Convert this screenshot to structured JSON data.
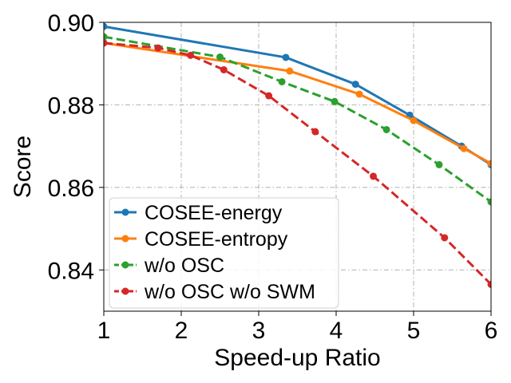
{
  "chart_data": {
    "type": "line",
    "title": "",
    "xlabel": "Speed-up Ratio",
    "ylabel": "Score",
    "xlim": [
      1,
      6
    ],
    "ylim": [
      0.83,
      0.9
    ],
    "xticks": [
      1,
      2,
      3,
      4,
      5,
      6
    ],
    "xtick_labels": [
      "1",
      "2",
      "3",
      "4",
      "5",
      "6"
    ],
    "yticks": [
      0.84,
      0.86,
      0.88,
      0.9
    ],
    "ytick_labels": [
      "0.84",
      "0.86",
      "0.88",
      "0.90"
    ],
    "grid": true,
    "legend_position": "lower-left",
    "series": [
      {
        "name": "COSEE-energy",
        "color": "#1f77b4",
        "linestyle": "solid",
        "x": [
          1.0,
          3.35,
          4.25,
          4.95,
          5.62,
          6.0
        ],
        "y": [
          0.899,
          0.8915,
          0.885,
          0.8775,
          0.87,
          0.8655
        ]
      },
      {
        "name": "COSEE-entropy",
        "color": "#ff7f0e",
        "linestyle": "solid",
        "x": [
          1.0,
          3.4,
          4.3,
          5.0,
          5.65,
          6.0
        ],
        "y": [
          0.895,
          0.8882,
          0.8826,
          0.8762,
          0.8694,
          0.8658
        ]
      },
      {
        "name": "w/o OSC",
        "color": "#2ca02c",
        "linestyle": "dashed",
        "x": [
          1.0,
          2.5,
          3.3,
          3.98,
          4.65,
          5.33,
          6.0
        ],
        "y": [
          0.8965,
          0.8916,
          0.8856,
          0.8808,
          0.874,
          0.8655,
          0.8565
        ]
      },
      {
        "name": "w/o OSC w/o SWM",
        "color": "#d62728",
        "linestyle": "dashed",
        "x": [
          1.0,
          1.7,
          2.12,
          2.55,
          3.13,
          3.73,
          4.48,
          5.4,
          6.0
        ],
        "y": [
          0.895,
          0.8938,
          0.892,
          0.8885,
          0.8822,
          0.8735,
          0.8627,
          0.8478,
          0.8365
        ]
      }
    ]
  }
}
